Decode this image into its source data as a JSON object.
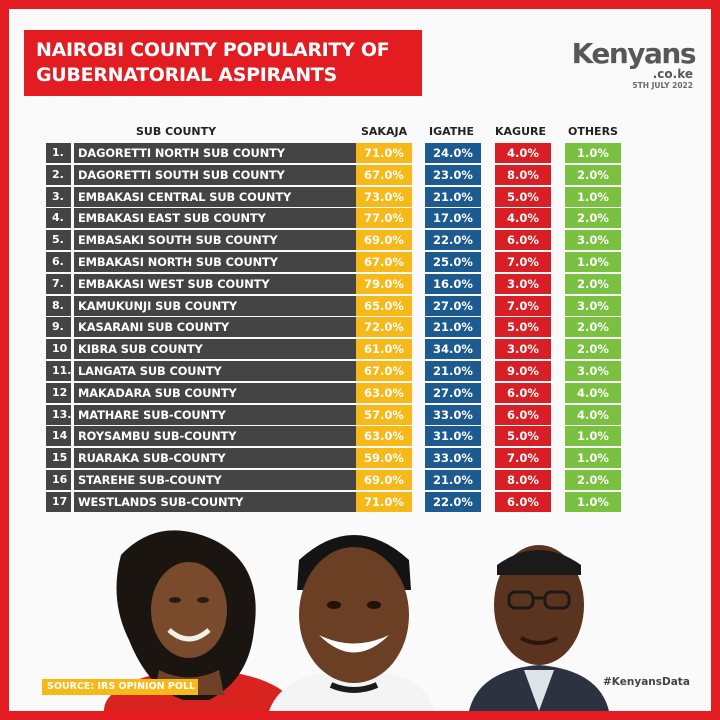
{
  "title": {
    "line1": "NAIROBI COUNTY POPULARITY OF",
    "line2": "GUBERNATORIAL ASPIRANTS"
  },
  "logo": {
    "brand": "Kenyans",
    "domain": ".co.ke",
    "date": "5TH JULY 2022"
  },
  "columns": {
    "sub_county": "SUB COUNTY",
    "sakaja": "SAKAJA",
    "igathe": "IGATHE",
    "kagure": "KAGURE",
    "others": "OTHERS"
  },
  "colors": {
    "sakaja": "#f7b819",
    "igathe": "#1d5a8f",
    "kagure": "#d81f26",
    "others": "#7ac142",
    "frame": "#e31c22"
  },
  "rows": [
    {
      "num": "1.",
      "name": "DAGORETTI NORTH SUB COUNTY",
      "sakaja": "71.0%",
      "igathe": "24.0%",
      "kagure": "4.0%",
      "others": "1.0%"
    },
    {
      "num": "2.",
      "name": "DAGORETTI SOUTH SUB COUNTY",
      "sakaja": "67.0%",
      "igathe": "23.0%",
      "kagure": "8.0%",
      "others": "2.0%"
    },
    {
      "num": "3.",
      "name": "EMBAKASI CENTRAL SUB COUNTY",
      "sakaja": "73.0%",
      "igathe": "21.0%",
      "kagure": "5.0%",
      "others": "1.0%"
    },
    {
      "num": "4.",
      "name": "EMBAKASI EAST SUB COUNTY",
      "sakaja": "77.0%",
      "igathe": "17.0%",
      "kagure": "4.0%",
      "others": "2.0%"
    },
    {
      "num": "5.",
      "name": "EMBASAKI SOUTH SUB COUNTY",
      "sakaja": "69.0%",
      "igathe": "22.0%",
      "kagure": "6.0%",
      "others": "3.0%"
    },
    {
      "num": "6.",
      "name": "EMBAKASI NORTH SUB COUNTY",
      "sakaja": "67.0%",
      "igathe": "25.0%",
      "kagure": "7.0%",
      "others": "1.0%"
    },
    {
      "num": "7.",
      "name": "EMBAKASI WEST SUB COUNTY",
      "sakaja": "79.0%",
      "igathe": "16.0%",
      "kagure": "3.0%",
      "others": "2.0%"
    },
    {
      "num": "8.",
      "name": "KAMUKUNJI SUB COUNTY",
      "sakaja": "65.0%",
      "igathe": "27.0%",
      "kagure": "7.0%",
      "others": "3.0%"
    },
    {
      "num": "9.",
      "name": "KASARANI SUB COUNTY",
      "sakaja": "72.0%",
      "igathe": "21.0%",
      "kagure": "5.0%",
      "others": "2.0%"
    },
    {
      "num": "10",
      "name": "KIBRA SUB COUNTY",
      "sakaja": "61.0%",
      "igathe": "34.0%",
      "kagure": "3.0%",
      "others": "2.0%"
    },
    {
      "num": "11.",
      "name": "LANGATA SUB COUNTY",
      "sakaja": "67.0%",
      "igathe": "21.0%",
      "kagure": "9.0%",
      "others": "3.0%"
    },
    {
      "num": "12",
      "name": "MAKADARA SUB COUNTY",
      "sakaja": "63.0%",
      "igathe": "27.0%",
      "kagure": "6.0%",
      "others": "4.0%"
    },
    {
      "num": "13.",
      "name": "MATHARE SUB-COUNTY",
      "sakaja": "57.0%",
      "igathe": "33.0%",
      "kagure": "6.0%",
      "others": "4.0%"
    },
    {
      "num": "14",
      "name": "ROYSAMBU SUB-COUNTY",
      "sakaja": "63.0%",
      "igathe": "31.0%",
      "kagure": "5.0%",
      "others": "1.0%"
    },
    {
      "num": "15",
      "name": "RUARAKA SUB-COUNTY",
      "sakaja": "59.0%",
      "igathe": "33.0%",
      "kagure": "7.0%",
      "others": "1.0%"
    },
    {
      "num": "16",
      "name": "STAREHE SUB-COUNTY",
      "sakaja": "69.0%",
      "igathe": "21.0%",
      "kagure": "8.0%",
      "others": "2.0%"
    },
    {
      "num": "17",
      "name": "WESTLANDS SUB-COUNTY",
      "sakaja": "71.0%",
      "igathe": "22.0%",
      "kagure": "6.0%",
      "others": "1.0%"
    }
  ],
  "footer": {
    "source": "SOURCE: IRS OPINION POLL",
    "hashtag": "#KenyansData"
  }
}
